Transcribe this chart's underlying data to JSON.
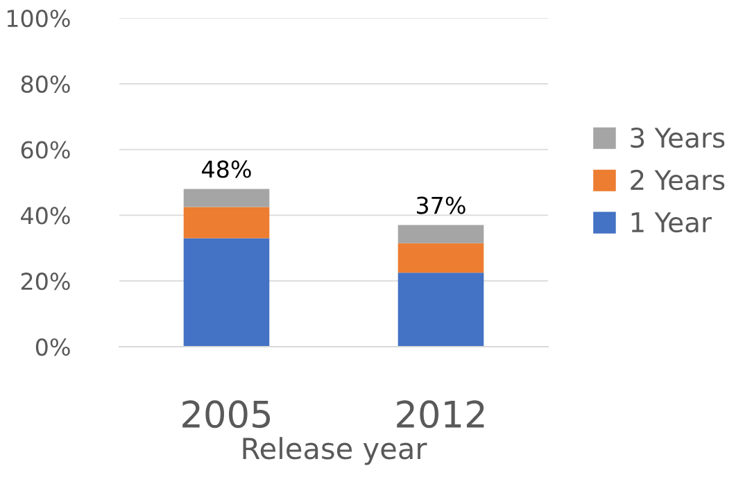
{
  "chart_data": {
    "type": "bar",
    "stacked": true,
    "xlabel": "Release year",
    "categories": [
      "2005",
      "2012"
    ],
    "series": [
      {
        "name": "1 Year",
        "color": "#4472c4",
        "values": [
          33,
          22.5
        ]
      },
      {
        "name": "2 Years",
        "color": "#ed7d31",
        "values": [
          9.5,
          9
        ]
      },
      {
        "name": "3 Years",
        "color": "#a5a5a5",
        "values": [
          5.5,
          5.5
        ]
      }
    ],
    "totals": [
      "48%",
      "37%"
    ],
    "ylim": [
      0,
      100
    ],
    "yticks": [
      {
        "value": 0,
        "label": "0%"
      },
      {
        "value": 20,
        "label": "20%"
      },
      {
        "value": 40,
        "label": "40%"
      },
      {
        "value": 60,
        "label": "60%"
      },
      {
        "value": 80,
        "label": "80%"
      },
      {
        "value": 100,
        "label": "100%"
      }
    ],
    "grid": "y",
    "legend": "right"
  }
}
